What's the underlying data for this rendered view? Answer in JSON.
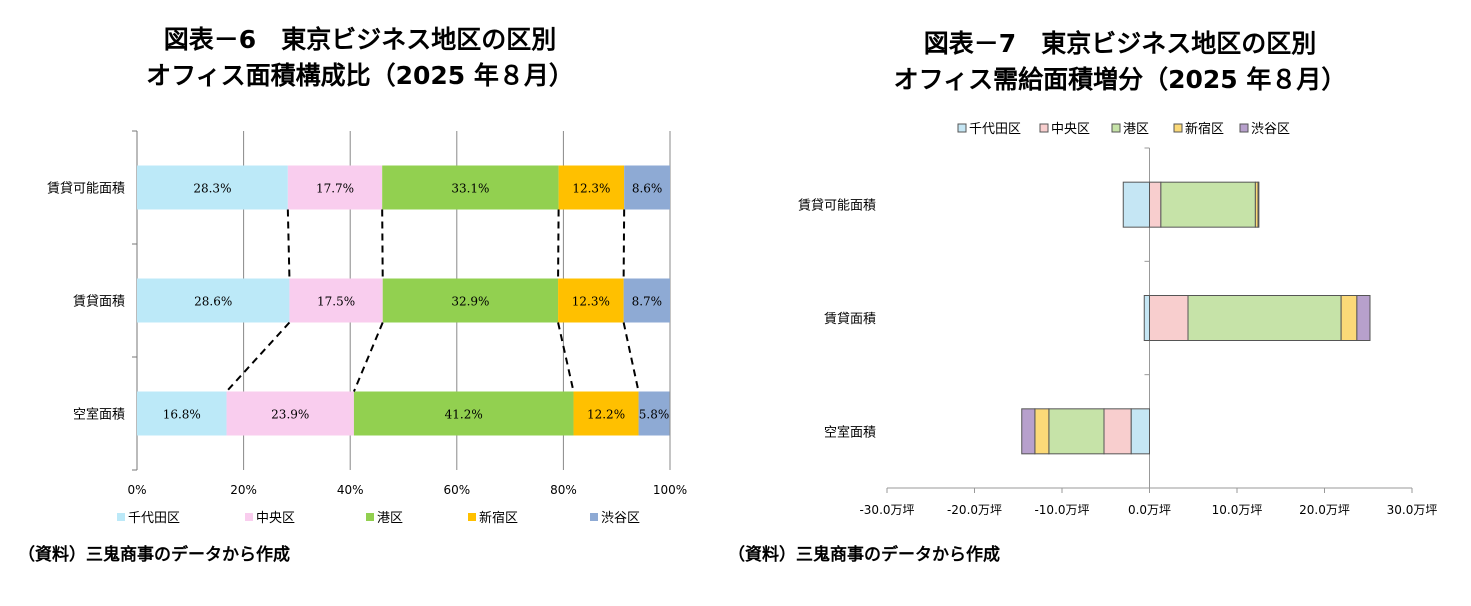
{
  "chart_data": [
    {
      "type": "bar",
      "orientation": "horizontal",
      "stacked": "100%",
      "title": [
        "図表－6　東京ビジネス地区の区別",
        "オフィス面積構成比（2025 年８月）"
      ],
      "categories": [
        "賃貸可能面積",
        "賃貸面積",
        "空室面積"
      ],
      "series": [
        {
          "name": "千代田区",
          "color": "#bce9f8",
          "values": [
            28.3,
            28.6,
            16.8
          ],
          "labels": [
            "28.3%",
            "28.6%",
            "16.8%"
          ]
        },
        {
          "name": "中央区",
          "color": "#f9cdee",
          "values": [
            17.7,
            17.5,
            23.9
          ],
          "labels": [
            "17.7%",
            "17.5%",
            "23.9%"
          ]
        },
        {
          "name": "港区",
          "color": "#92d050",
          "values": [
            33.1,
            32.9,
            41.2
          ],
          "labels": [
            "33.1%",
            "32.9%",
            "41.2%"
          ]
        },
        {
          "name": "新宿区",
          "color": "#ffc000",
          "values": [
            12.3,
            12.3,
            12.2
          ],
          "labels": [
            "12.3%",
            "12.3%",
            "12.2%"
          ]
        },
        {
          "name": "渋谷区",
          "color": "#8eaad4",
          "values": [
            8.6,
            8.7,
            5.8
          ],
          "labels": [
            "8.6%",
            "8.7%",
            "5.8%"
          ]
        }
      ],
      "xlim": [
        0,
        100
      ],
      "xticks": [
        "0%",
        "20%",
        "40%",
        "60%",
        "80%",
        "100%"
      ],
      "grid": true,
      "legend": "bottom",
      "source": "（資料）三鬼商事のデータから作成"
    },
    {
      "type": "bar",
      "orientation": "horizontal",
      "stacked": true,
      "title": [
        "図表－7　東京ビジネス地区の区別",
        "オフィス需給面積増分（2025 年８月）"
      ],
      "categories": [
        "賃貸可能面積",
        "賃貸面積",
        "空室面積"
      ],
      "series": [
        {
          "name": "千代田区",
          "color": "#c5e6f4",
          "values": [
            -3.0,
            -0.6,
            -2.1
          ]
        },
        {
          "name": "中央区",
          "color": "#f8cece",
          "values": [
            1.3,
            4.4,
            -3.1
          ]
        },
        {
          "name": "港区",
          "color": "#c6e3a8",
          "values": [
            10.8,
            17.5,
            -6.3
          ]
        },
        {
          "name": "新宿区",
          "color": "#fbd978",
          "values": [
            0.3,
            1.8,
            -1.6
          ]
        },
        {
          "name": "渋谷区",
          "color": "#b7a0cc",
          "values": [
            0.1,
            1.5,
            -1.5
          ]
        }
      ],
      "xlim": [
        -30,
        30
      ],
      "xticks": [
        "-30.0万坪",
        "-20.0万坪",
        "-10.0万坪",
        "0.0万坪",
        "10.0万坪",
        "20.0万坪",
        "30.0万坪"
      ],
      "unit": "万坪",
      "grid": false,
      "legend": "top",
      "source": "（資料）三鬼商事のデータから作成"
    }
  ]
}
